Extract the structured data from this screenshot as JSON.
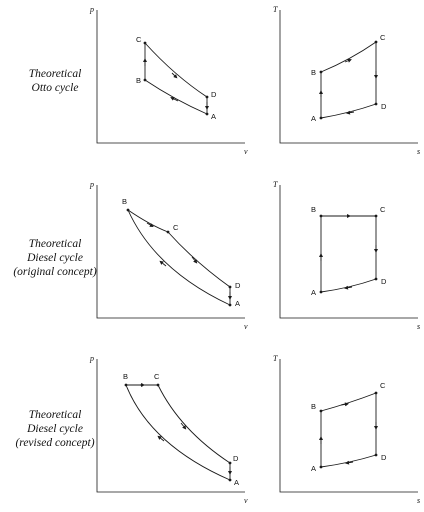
{
  "rows": [
    {
      "caption": [
        "Theoretical",
        "Otto cycle"
      ],
      "pv": {
        "ylabel": "p",
        "xlabel": "v",
        "points": [
          "A",
          "B",
          "C",
          "D"
        ]
      },
      "ts": {
        "ylabel": "T",
        "xlabel": "s",
        "points": [
          "A",
          "B",
          "C",
          "D"
        ]
      }
    },
    {
      "caption": [
        "Theoretical",
        "Diesel cycle",
        "(original concept)"
      ],
      "pv": {
        "ylabel": "p",
        "xlabel": "v",
        "points": [
          "A",
          "B",
          "C",
          "D"
        ]
      },
      "ts": {
        "ylabel": "T",
        "xlabel": "s",
        "points": [
          "A",
          "B",
          "C",
          "D"
        ]
      }
    },
    {
      "caption": [
        "Theoretical",
        "Diesel cycle",
        "(revised concept)"
      ],
      "pv": {
        "ylabel": "p",
        "xlabel": "v",
        "points": [
          "A",
          "B",
          "C",
          "D"
        ]
      },
      "ts": {
        "ylabel": "T",
        "xlabel": "s",
        "points": [
          "A",
          "B",
          "C",
          "D"
        ]
      }
    }
  ],
  "colors": {
    "line": "#1a1a1a",
    "text": "#111111"
  }
}
